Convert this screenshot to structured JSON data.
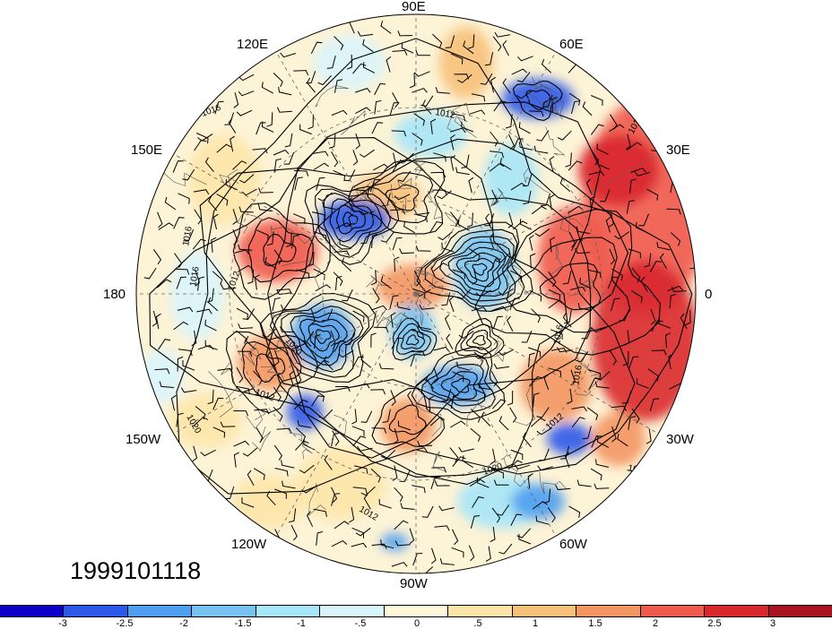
{
  "date_stamp": "1999101118",
  "longitude_labels": {
    "lon_90e": "90E",
    "lon_120e": "120E",
    "lon_60e": "60E",
    "lon_150e": "150E",
    "lon_30e": "30E",
    "lon_180": "180",
    "lon_0": "0",
    "lon_150w": "150W",
    "lon_30w": "30W",
    "lon_120w": "120W",
    "lon_60w": "60W",
    "lon_90w": "90W"
  },
  "contour_labels": [
    "1016",
    "1012",
    "1012",
    "1016",
    "1016",
    "1012",
    "1020",
    "1012",
    "1020",
    "1016",
    "1016",
    "1012",
    "1020",
    "1016",
    "1012"
  ],
  "colorbar": {
    "colors": [
      "#0b00c9",
      "#2c5ae8",
      "#4f9ff0",
      "#78c2f2",
      "#a6e6f8",
      "#d9f5fc",
      "#fff8d8",
      "#fde5a8",
      "#f7c079",
      "#f39662",
      "#ef5a4c",
      "#d9282d",
      "#a81420"
    ],
    "ticks": [
      "-3",
      "-2.5",
      "-2",
      "-1.5",
      "-1",
      "-.5",
      "0",
      ".5",
      "1",
      "1.5",
      "2",
      "2.5",
      "3"
    ]
  }
}
